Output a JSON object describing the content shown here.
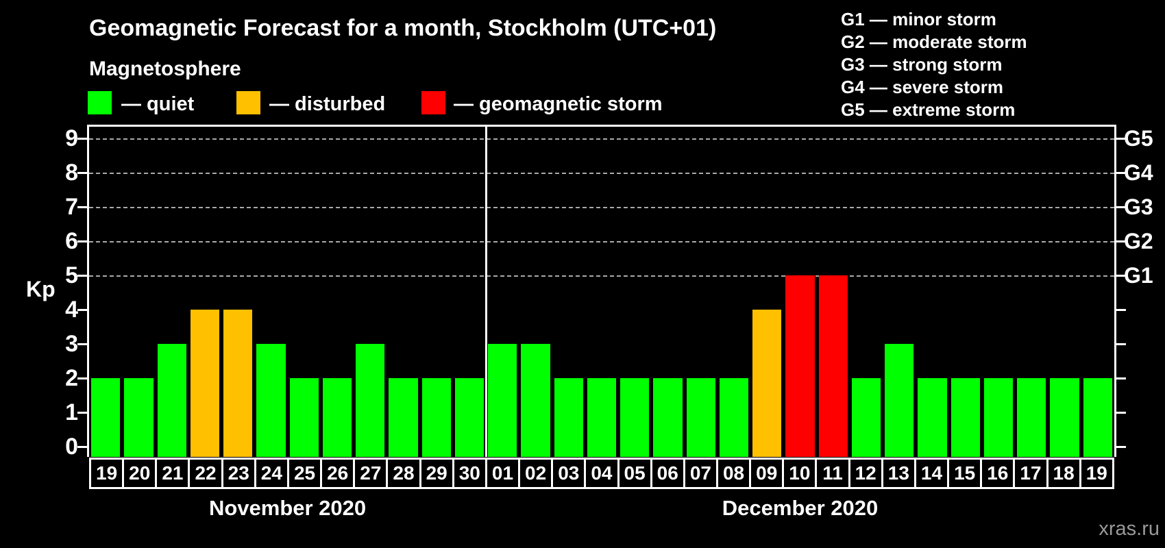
{
  "header": {
    "title": "Geomagnetic Forecast for a month, Stockholm (UTC+01)",
    "subtitle": "Magnetosphere",
    "legend": [
      {
        "key": "quiet",
        "label": "— quiet",
        "color": "#00ff00"
      },
      {
        "key": "disturbed",
        "label": "— disturbed",
        "color": "#ffc000"
      },
      {
        "key": "storm",
        "label": "— geomagnetic storm",
        "color": "#ff0000"
      }
    ],
    "g_scale_legend": [
      "G1 — minor storm",
      "G2 — moderate storm",
      "G3 — strong storm",
      "G4 — severe storm",
      "G5 — extreme storm"
    ]
  },
  "watermark": "xras.ru",
  "chart_data": {
    "type": "bar",
    "title": "Geomagnetic Forecast for a month, Stockholm (UTC+01)",
    "ylabel": "Kp",
    "ylim": [
      0,
      9
    ],
    "y_ticks": [
      0,
      1,
      2,
      3,
      4,
      5,
      6,
      7,
      8,
      9
    ],
    "gridlines_at_kp": [
      5,
      6,
      7,
      8,
      9
    ],
    "grid": "dashed horizontal at storm levels only",
    "right_axis_labels": [
      {
        "text": "G1",
        "kp": 5
      },
      {
        "text": "G2",
        "kp": 6
      },
      {
        "text": "G3",
        "kp": 7
      },
      {
        "text": "G4",
        "kp": 8
      },
      {
        "text": "G5",
        "kp": 9
      }
    ],
    "status_colors": {
      "quiet": "#00ff00",
      "disturbed": "#ffc000",
      "storm": "#ff0000"
    },
    "months": [
      {
        "label": "November 2020",
        "days": [
          {
            "day": "19",
            "kp": 2,
            "status": "quiet"
          },
          {
            "day": "20",
            "kp": 2,
            "status": "quiet"
          },
          {
            "day": "21",
            "kp": 3,
            "status": "quiet"
          },
          {
            "day": "22",
            "kp": 4,
            "status": "disturbed"
          },
          {
            "day": "23",
            "kp": 4,
            "status": "disturbed"
          },
          {
            "day": "24",
            "kp": 3,
            "status": "quiet"
          },
          {
            "day": "25",
            "kp": 2,
            "status": "quiet"
          },
          {
            "day": "26",
            "kp": 2,
            "status": "quiet"
          },
          {
            "day": "27",
            "kp": 3,
            "status": "quiet"
          },
          {
            "day": "28",
            "kp": 2,
            "status": "quiet"
          },
          {
            "day": "29",
            "kp": 2,
            "status": "quiet"
          },
          {
            "day": "30",
            "kp": 2,
            "status": "quiet"
          }
        ]
      },
      {
        "label": "December 2020",
        "days": [
          {
            "day": "01",
            "kp": 3,
            "status": "quiet"
          },
          {
            "day": "02",
            "kp": 3,
            "status": "quiet"
          },
          {
            "day": "03",
            "kp": 2,
            "status": "quiet"
          },
          {
            "day": "04",
            "kp": 2,
            "status": "quiet"
          },
          {
            "day": "05",
            "kp": 2,
            "status": "quiet"
          },
          {
            "day": "06",
            "kp": 2,
            "status": "quiet"
          },
          {
            "day": "07",
            "kp": 2,
            "status": "quiet"
          },
          {
            "day": "08",
            "kp": 2,
            "status": "quiet"
          },
          {
            "day": "09",
            "kp": 4,
            "status": "disturbed"
          },
          {
            "day": "10",
            "kp": 5,
            "status": "storm"
          },
          {
            "day": "11",
            "kp": 5,
            "status": "storm"
          },
          {
            "day": "12",
            "kp": 2,
            "status": "quiet"
          },
          {
            "day": "13",
            "kp": 3,
            "status": "quiet"
          },
          {
            "day": "14",
            "kp": 2,
            "status": "quiet"
          },
          {
            "day": "15",
            "kp": 2,
            "status": "quiet"
          },
          {
            "day": "16",
            "kp": 2,
            "status": "quiet"
          },
          {
            "day": "17",
            "kp": 2,
            "status": "quiet"
          },
          {
            "day": "18",
            "kp": 2,
            "status": "quiet"
          },
          {
            "day": "19",
            "kp": 2,
            "status": "quiet"
          }
        ]
      }
    ]
  }
}
